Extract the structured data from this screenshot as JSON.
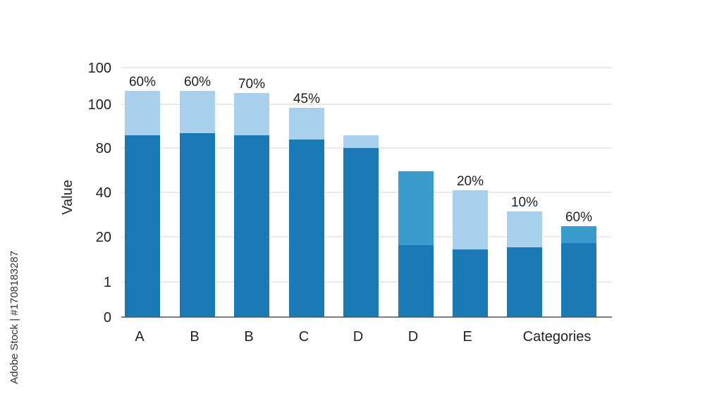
{
  "chart_data": {
    "type": "bar",
    "stacked": true,
    "xlabel": "",
    "ylabel": "Value",
    "yticks": [
      "0",
      "1",
      "20",
      "40",
      "80",
      "100",
      "100"
    ],
    "ylim": [
      0,
      120
    ],
    "grid": true,
    "categories": [
      "A",
      "B",
      "B",
      "C",
      "D",
      "D",
      "E",
      "",
      ""
    ],
    "axis_end_label": "Categories",
    "series": [
      {
        "values": [
          86,
          87,
          86,
          84,
          80,
          34,
          32,
          33,
          35
        ]
      },
      {
        "values": [
          21,
          20,
          20,
          15,
          6,
          35,
          28,
          17,
          8
        ]
      }
    ],
    "data_labels": [
      "60%",
      "60%",
      "70%",
      "45%",
      "",
      "",
      "20%",
      "10%",
      "60%"
    ],
    "colors": {
      "base": "#1a7ab6",
      "top": "#a9d0ec",
      "top_alt": "#3a9ccd",
      "grid": "#d4d4d4",
      "axis": "#555555",
      "text": "#222222"
    },
    "top_alt_indices": [
      5,
      8
    ]
  },
  "credit": "Adobe Stock | #1708183287"
}
